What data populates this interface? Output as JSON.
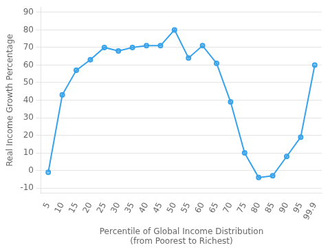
{
  "chart_data": {
    "type": "line",
    "xlabel": "Percentile of Global Income Distribution\n(from Poorest to Richest)",
    "ylabel": "Real Income Growth Percentage",
    "categories": [
      "5",
      "10",
      "15",
      "20",
      "25",
      "30",
      "35",
      "40",
      "45",
      "50",
      "55",
      "60",
      "65",
      "70",
      "75",
      "80",
      "85",
      "90",
      "95",
      "99.9"
    ],
    "values": [
      -1,
      43,
      57,
      63,
      70,
      68,
      70,
      71,
      71,
      80,
      64,
      71,
      61,
      39,
      10,
      -4,
      -3,
      8,
      19,
      60
    ],
    "ylim": [
      -13,
      93
    ],
    "yticks": [
      -10,
      0,
      10,
      20,
      30,
      40,
      50,
      60,
      70,
      80,
      90
    ],
    "grid": "y",
    "marker": "circle"
  }
}
